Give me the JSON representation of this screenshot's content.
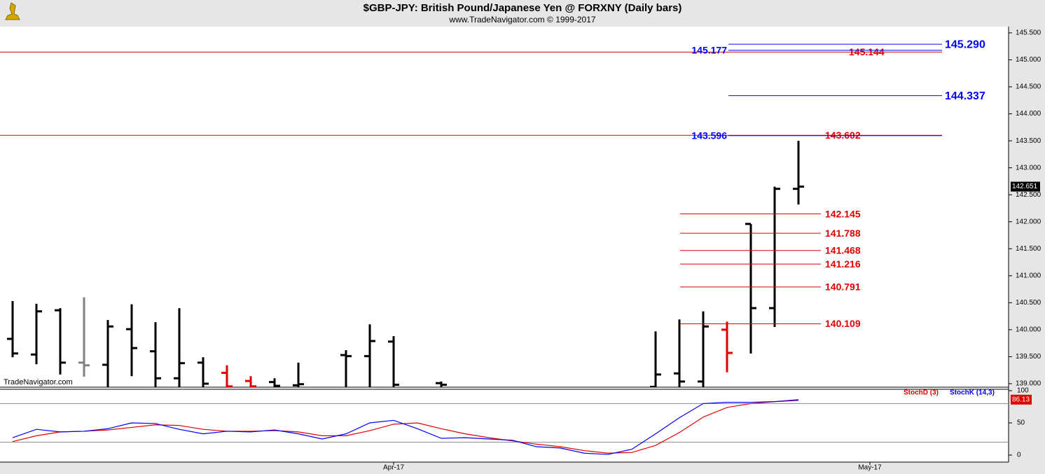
{
  "chart_data": [
    {
      "type": "ohlc",
      "title": "$GBP-JPY:  British Pound/Japanese Yen @ FORXNY  (Daily bars)",
      "subtitle": "www.TradeNavigator.com © 1999-2017",
      "watermark": "TradeNavigator.com",
      "categories": [
        null,
        null,
        null,
        null,
        null,
        null,
        null,
        null,
        null,
        null,
        null,
        null,
        null,
        null,
        null,
        null,
        "Apr-17",
        null,
        null,
        null,
        null,
        null,
        null,
        null,
        null,
        null,
        null,
        null,
        null,
        null,
        null,
        null,
        null,
        null,
        null,
        null,
        "May-17"
      ],
      "open": [
        139.83,
        139.54,
        140.36,
        139.39,
        139.35,
        140.01,
        139.6,
        139.1,
        139.39,
        139.2,
        139.05,
        139.03,
        138.97,
        null,
        139.53,
        139.51,
        139.78,
        null,
        139.01,
        null,
        null,
        null,
        null,
        null,
        null,
        null,
        null,
        138.94,
        139.19,
        139.04,
        140.0,
        141.96,
        140.4,
        142.61,
        null,
        null,
        null
      ],
      "high": [
        140.53,
        140.48,
        140.4,
        140.6,
        140.18,
        140.47,
        140.14,
        140.4,
        139.49,
        139.34,
        139.14,
        139.1,
        139.39,
        null,
        139.62,
        140.1,
        139.88,
        null,
        139.04,
        null,
        null,
        null,
        null,
        null,
        null,
        null,
        null,
        139.97,
        140.19,
        140.34,
        140.15,
        141.96,
        142.65,
        143.5,
        null,
        null,
        null
      ],
      "low": [
        139.49,
        139.36,
        139.17,
        139.13,
        138.94,
        139.14,
        138.94,
        138.94,
        138.94,
        138.94,
        138.94,
        138.94,
        138.94,
        null,
        138.94,
        138.94,
        138.94,
        null,
        138.94,
        null,
        null,
        null,
        null,
        null,
        null,
        null,
        null,
        138.94,
        138.94,
        138.94,
        139.21,
        139.56,
        140.05,
        142.32,
        null,
        null,
        null
      ],
      "close": [
        139.56,
        140.34,
        139.39,
        139.34,
        140.06,
        139.66,
        139.1,
        139.38,
        139.0,
        138.95,
        138.95,
        138.96,
        138.99,
        null,
        139.51,
        139.79,
        138.98,
        null,
        138.98,
        null,
        null,
        null,
        null,
        null,
        null,
        null,
        null,
        139.17,
        139.04,
        140.06,
        139.57,
        140.4,
        142.61,
        142.651,
        null,
        null,
        null
      ],
      "bar_colors": [
        "#000000",
        "#000000",
        "#000000",
        "#808080",
        "#000000",
        "#000000",
        "#000000",
        "#000000",
        "#000000",
        "#e00000",
        "#e00000",
        "#000000",
        "#000000",
        null,
        "#000000",
        "#000000",
        "#000000",
        null,
        "#000000",
        null,
        null,
        null,
        null,
        null,
        null,
        null,
        null,
        "#000000",
        "#000000",
        "#000000",
        "#e00000",
        "#000000",
        "#000000",
        "#000000",
        null,
        null,
        null
      ],
      "ylim": [
        138.935,
        145.616
      ],
      "yticks": [
        {
          "value": 139,
          "label": "139.000"
        },
        {
          "value": 139.5,
          "label": "139.500"
        },
        {
          "value": 140,
          "label": "140.000"
        },
        {
          "value": 140.5,
          "label": "140.500"
        },
        {
          "value": 141,
          "label": "141.000"
        },
        {
          "value": 141.5,
          "label": "141.500"
        },
        {
          "value": 142,
          "label": "142.000"
        },
        {
          "value": 142.5,
          "label": "142.500"
        },
        {
          "value": 143,
          "label": "143.000"
        },
        {
          "value": 143.5,
          "label": "143.500"
        },
        {
          "value": 144,
          "label": "144.000"
        },
        {
          "value": 144.5,
          "label": "144.500"
        },
        {
          "value": 145,
          "label": "145.000"
        },
        {
          "value": 145.5,
          "label": "145.500"
        }
      ],
      "lines": [
        {
          "value": 145.144,
          "label": "145.144",
          "color": "#e00000",
          "kind": "horizontal"
        },
        {
          "value": 143.602,
          "label": "143.602",
          "color": "#e00000",
          "kind": "horizontal"
        },
        {
          "value": 145.29,
          "label": "145.290",
          "color": "#0000ff",
          "kind": "projection"
        },
        {
          "value": 144.337,
          "label": "144.337",
          "color": "#0000ff",
          "kind": "projection"
        },
        {
          "value": 145.177,
          "label": "145.177",
          "color": "#0000ff",
          "kind": "projection-left"
        },
        {
          "value": 143.596,
          "label": "143.596",
          "color": "#0000ff",
          "kind": "projection-left"
        },
        {
          "value": 142.145,
          "label": "142.145",
          "color": "#e00000",
          "kind": "retracement"
        },
        {
          "value": 141.788,
          "label": "141.788",
          "color": "#e00000",
          "kind": "retracement"
        },
        {
          "value": 141.468,
          "label": "141.468",
          "color": "#e00000",
          "kind": "retracement"
        },
        {
          "value": 141.216,
          "label": "141.216",
          "color": "#e00000",
          "kind": "retracement"
        },
        {
          "value": 140.791,
          "label": "140.791",
          "color": "#e00000",
          "kind": "retracement"
        },
        {
          "value": 140.109,
          "label": "140.109",
          "color": "#e00000",
          "kind": "retracement"
        }
      ]
    },
    {
      "type": "line",
      "series": [
        {
          "name": "StochD (3)",
          "color": "#e00000",
          "values": [
            21,
            30,
            36,
            37,
            39,
            43,
            47,
            46,
            40,
            37,
            37,
            38,
            36,
            30,
            30,
            38,
            48,
            50,
            41,
            33,
            27,
            22,
            17,
            13,
            7,
            3,
            4,
            15,
            35,
            59,
            74,
            80,
            83,
            86.13,
            null,
            null,
            null
          ]
        },
        {
          "name": "StochK (14,3)",
          "color": "#0000ff",
          "values": [
            27,
            40,
            36,
            37,
            41,
            50,
            49,
            40,
            33,
            37,
            36,
            39,
            33,
            25,
            33,
            50,
            54,
            41,
            26,
            27,
            25,
            23,
            13,
            11,
            3,
            1,
            9,
            33,
            58,
            80,
            82,
            82,
            83,
            85,
            null,
            null,
            null
          ]
        }
      ],
      "ylim": [
        -10.9,
        102.2
      ],
      "yticks": [
        0,
        50,
        100
      ],
      "bands": [
        20,
        80
      ]
    }
  ]
}
